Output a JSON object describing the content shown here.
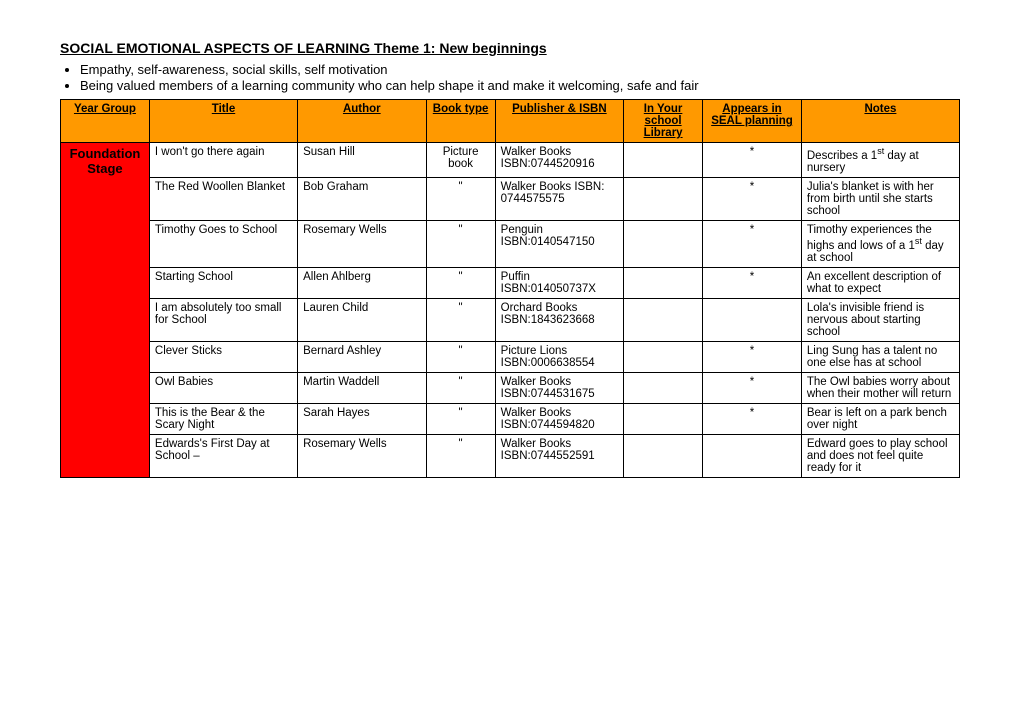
{
  "heading": "SOCIAL EMOTIONAL ASPECTS OF LEARNING Theme 1: New beginnings",
  "bullets": [
    "Empathy, self-awareness, social skills, self motivation",
    "Being valued members of a learning community who can help shape it and make it welcoming, safe and fair"
  ],
  "headers": {
    "year": "Year Group",
    "title": "Title",
    "author": "Author",
    "booktype": "Book type",
    "publisher": "Publisher & ISBN",
    "library": "In Your school Library",
    "seal": "Appears in SEAL planning",
    "notes": "Notes"
  },
  "yearGroupLabel": "Foundation Stage",
  "rows": [
    {
      "title": "I won't go there again",
      "author": "Susan Hill",
      "booktype": "Picture book",
      "publisher": "Walker Books ISBN:0744520916",
      "library": "",
      "seal": "*",
      "notes_html": "Describes a 1<sup>st</sup> day at nursery"
    },
    {
      "title": "The Red Woollen Blanket",
      "author": "Bob Graham",
      "booktype": "\"",
      "publisher": "Walker Books ISBN: 0744575575",
      "library": "",
      "seal": "*",
      "notes_html": "Julia's blanket is with her from birth until she starts school"
    },
    {
      "title": "Timothy Goes to School",
      "author": "Rosemary Wells",
      "booktype": "\"",
      "publisher": "Penguin ISBN:0140547150",
      "library": "",
      "seal": "*",
      "notes_html": "Timothy experiences the highs and lows of a 1<sup>st</sup> day at school"
    },
    {
      "title": "Starting School",
      "author": "Allen Ahlberg",
      "booktype": "\"",
      "publisher": "Puffin ISBN:014050737X",
      "library": "",
      "seal": "*",
      "notes_html": "An excellent description of what to expect"
    },
    {
      "title": "I am absolutely too small for School",
      "author": "Lauren Child",
      "booktype": "\"",
      "publisher": "Orchard Books ISBN:1843623668",
      "library": "",
      "seal": "",
      "notes_html": "Lola's invisible friend is nervous about starting school"
    },
    {
      "title": "Clever Sticks",
      "author": "Bernard Ashley",
      "booktype": "\"",
      "publisher": "Picture Lions ISBN:0006638554",
      "library": "",
      "seal": "*",
      "notes_html": "Ling Sung has a talent no one else has at school"
    },
    {
      "title": "Owl Babies",
      "author": "Martin Waddell",
      "booktype": "\"",
      "publisher": "Walker Books ISBN:0744531675",
      "library": "",
      "seal": "*",
      "notes_html": "The Owl babies worry about when their mother will return"
    },
    {
      "title": "This is the Bear & the Scary Night",
      "author": "Sarah Hayes",
      "booktype": "\"",
      "publisher": "Walker Books ISBN:0744594820",
      "library": "",
      "seal": "*",
      "notes_html": "Bear is left on a park bench over night"
    },
    {
      "title": "Edwards's First Day at School –",
      "author": "Rosemary Wells",
      "booktype": "\"",
      "publisher": "Walker Books ISBN:0744552591",
      "library": "",
      "seal": "",
      "notes_html": "Edward goes to play school and does not feel quite ready for it"
    }
  ]
}
